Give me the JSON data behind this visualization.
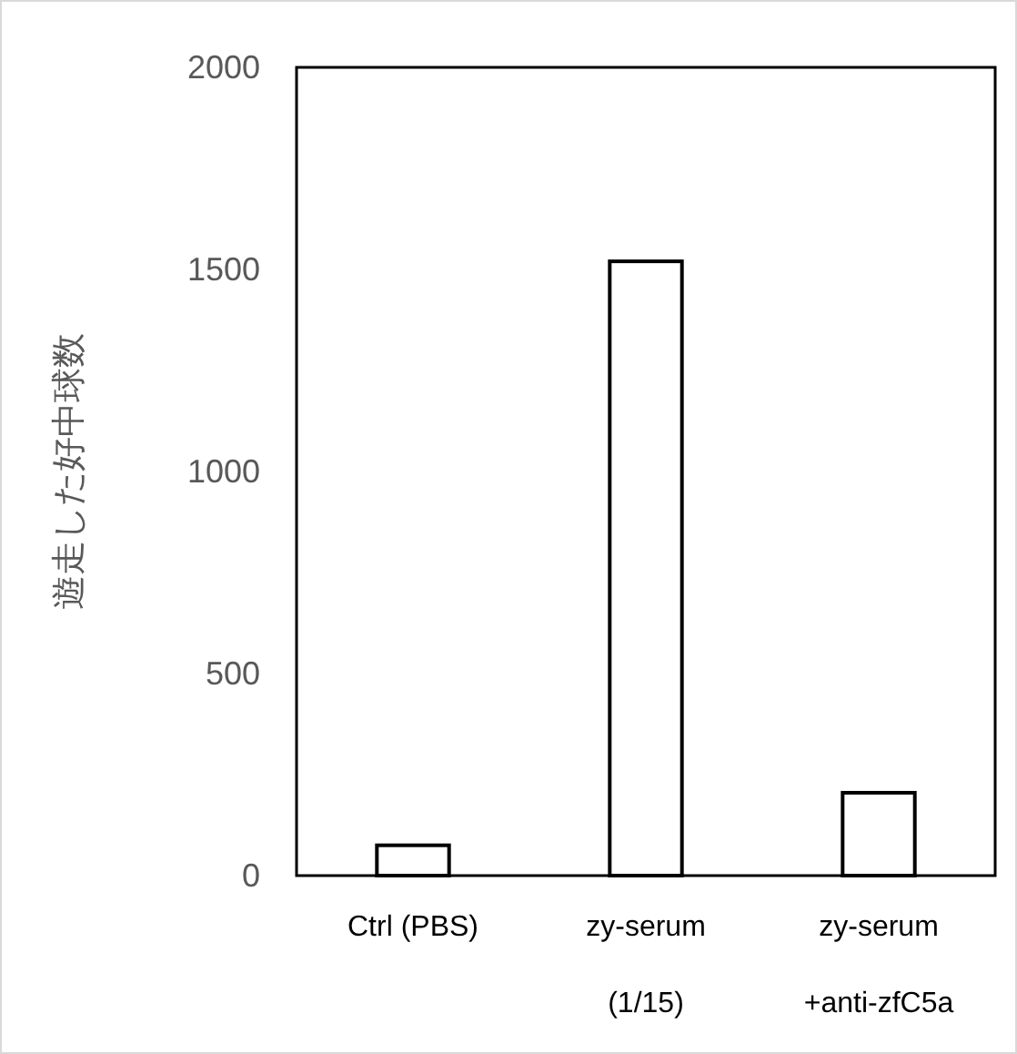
{
  "chart_data": {
    "type": "bar",
    "ylabel": "遊走した好中球数",
    "categories": [
      "Ctrl (PBS)",
      "zy-serum\n(1/15)",
      "zy-serum\n+anti-zfC5a"
    ],
    "values": [
      75,
      1520,
      205
    ],
    "color": "#ffffff",
    "ylim": [
      0,
      2000
    ],
    "yticks": [
      0,
      500,
      1000,
      1500,
      2000
    ],
    "grid": false
  }
}
